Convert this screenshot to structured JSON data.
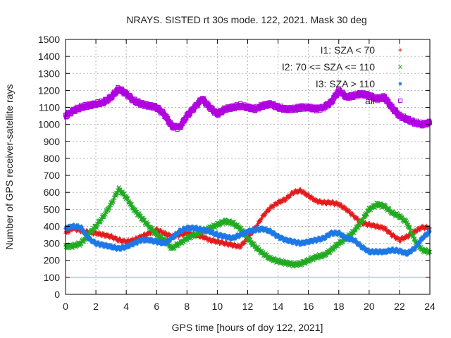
{
  "chart_data": {
    "type": "scatter",
    "title": "NRAYS. SISTED rt 30s mode. 122, 2021. Mask 30 deg",
    "xlabel": "GPS time [hours of doy 122, 2021]",
    "ylabel": "Number of GPS receiver-satellite rays",
    "xlim": [
      0,
      24
    ],
    "ylim": [
      0,
      1500
    ],
    "xticks": [
      "0",
      "2",
      "4",
      "6",
      "8",
      "10",
      "12",
      "14",
      "16",
      "18",
      "20",
      "22",
      "24"
    ],
    "yticks": [
      "0",
      "100",
      "200",
      "300",
      "400",
      "500",
      "600",
      "700",
      "800",
      "900",
      "1000",
      "1100",
      "1200",
      "1300",
      "1400",
      "1500"
    ],
    "grid": true,
    "legend_position": "top-right",
    "threshold_line": {
      "y": 100,
      "color": "#40d0e0"
    },
    "series": [
      {
        "name": "I1: SZA < 70",
        "marker": "+",
        "color": "#e41a1c",
        "x": [
          0,
          0.5,
          1,
          1.5,
          2,
          2.5,
          3,
          3.5,
          4,
          4.5,
          5,
          5.5,
          6,
          6.5,
          7,
          7.5,
          8,
          8.5,
          9,
          9.5,
          10,
          10.5,
          11,
          11.5,
          12,
          12.5,
          13,
          13.5,
          14,
          14.5,
          15,
          15.5,
          16,
          16.5,
          17,
          17.5,
          18,
          18.5,
          19,
          19.5,
          20,
          20.5,
          21,
          21.5,
          22,
          22.5,
          23,
          23.5,
          24
        ],
        "values": [
          360,
          390,
          375,
          365,
          360,
          350,
          340,
          320,
          310,
          320,
          340,
          360,
          380,
          360,
          340,
          350,
          360,
          350,
          340,
          320,
          310,
          300,
          290,
          280,
          330,
          390,
          460,
          510,
          540,
          560,
          600,
          610,
          580,
          550,
          540,
          540,
          530,
          500,
          460,
          420,
          410,
          400,
          390,
          350,
          320,
          340,
          370,
          395,
          390
        ]
      },
      {
        "name": "I2: 70 <= SZA <= 110",
        "marker": "x",
        "color": "#22aa22",
        "x": [
          0,
          0.5,
          1,
          1.5,
          2,
          2.5,
          3,
          3.5,
          4,
          4.5,
          5,
          5.5,
          6,
          6.5,
          7,
          7.5,
          8,
          8.5,
          9,
          9.5,
          10,
          10.5,
          11,
          11.5,
          12,
          12.5,
          13,
          13.5,
          14,
          14.5,
          15,
          15.5,
          16,
          16.5,
          17,
          17.5,
          18,
          18.5,
          19,
          19.5,
          20,
          20.5,
          21,
          21.5,
          22,
          22.5,
          23,
          23.5,
          24
        ],
        "values": [
          280,
          285,
          300,
          350,
          400,
          460,
          530,
          620,
          570,
          500,
          450,
          400,
          350,
          320,
          270,
          300,
          330,
          350,
          370,
          390,
          410,
          430,
          420,
          390,
          330,
          280,
          240,
          210,
          195,
          185,
          175,
          180,
          200,
          220,
          230,
          260,
          300,
          330,
          370,
          430,
          500,
          530,
          520,
          480,
          460,
          420,
          320,
          260,
          250
        ]
      },
      {
        "name": "I3: SZA > 110",
        "marker": "*",
        "color": "#1e78e6",
        "x": [
          0,
          0.5,
          1,
          1.5,
          2,
          2.5,
          3,
          3.5,
          4,
          4.5,
          5,
          5.5,
          6,
          6.5,
          7,
          7.5,
          8,
          8.5,
          9,
          9.5,
          10,
          10.5,
          11,
          11.5,
          12,
          12.5,
          13,
          13.5,
          14,
          14.5,
          15,
          15.5,
          16,
          16.5,
          17,
          17.5,
          18,
          18.5,
          19,
          19.5,
          20,
          20.5,
          21,
          21.5,
          22,
          22.5,
          23,
          23.5,
          24
        ],
        "values": [
          390,
          400,
          395,
          330,
          300,
          290,
          280,
          270,
          280,
          300,
          320,
          320,
          310,
          300,
          330,
          370,
          390,
          390,
          380,
          370,
          350,
          340,
          330,
          350,
          370,
          380,
          385,
          370,
          340,
          320,
          310,
          300,
          310,
          320,
          330,
          360,
          360,
          330,
          320,
          280,
          250,
          250,
          250,
          260,
          255,
          240,
          270,
          330,
          370
        ]
      },
      {
        "name": "all",
        "marker": "square",
        "color": "#b000e0",
        "x": [
          0,
          0.5,
          1,
          1.5,
          2,
          2.5,
          3,
          3.5,
          4,
          4.5,
          5,
          5.5,
          6,
          6.5,
          7,
          7.5,
          8,
          8.5,
          9,
          9.5,
          10,
          10.5,
          11,
          11.5,
          12,
          12.5,
          13,
          13.5,
          14,
          14.5,
          15,
          15.5,
          16,
          16.5,
          17,
          17.5,
          18,
          18.5,
          19,
          19.5,
          20,
          20.5,
          21,
          21.5,
          22,
          22.5,
          23,
          23.5,
          24
        ],
        "values": [
          1050,
          1080,
          1100,
          1110,
          1120,
          1130,
          1160,
          1210,
          1180,
          1140,
          1120,
          1110,
          1100,
          1060,
          990,
          980,
          1050,
          1100,
          1150,
          1100,
          1060,
          1090,
          1100,
          1110,
          1100,
          1090,
          1110,
          1120,
          1100,
          1090,
          1090,
          1100,
          1100,
          1090,
          1100,
          1130,
          1200,
          1160,
          1170,
          1180,
          1170,
          1150,
          1160,
          1100,
          1050,
          1030,
          1010,
          1000,
          1010
        ]
      }
    ]
  }
}
